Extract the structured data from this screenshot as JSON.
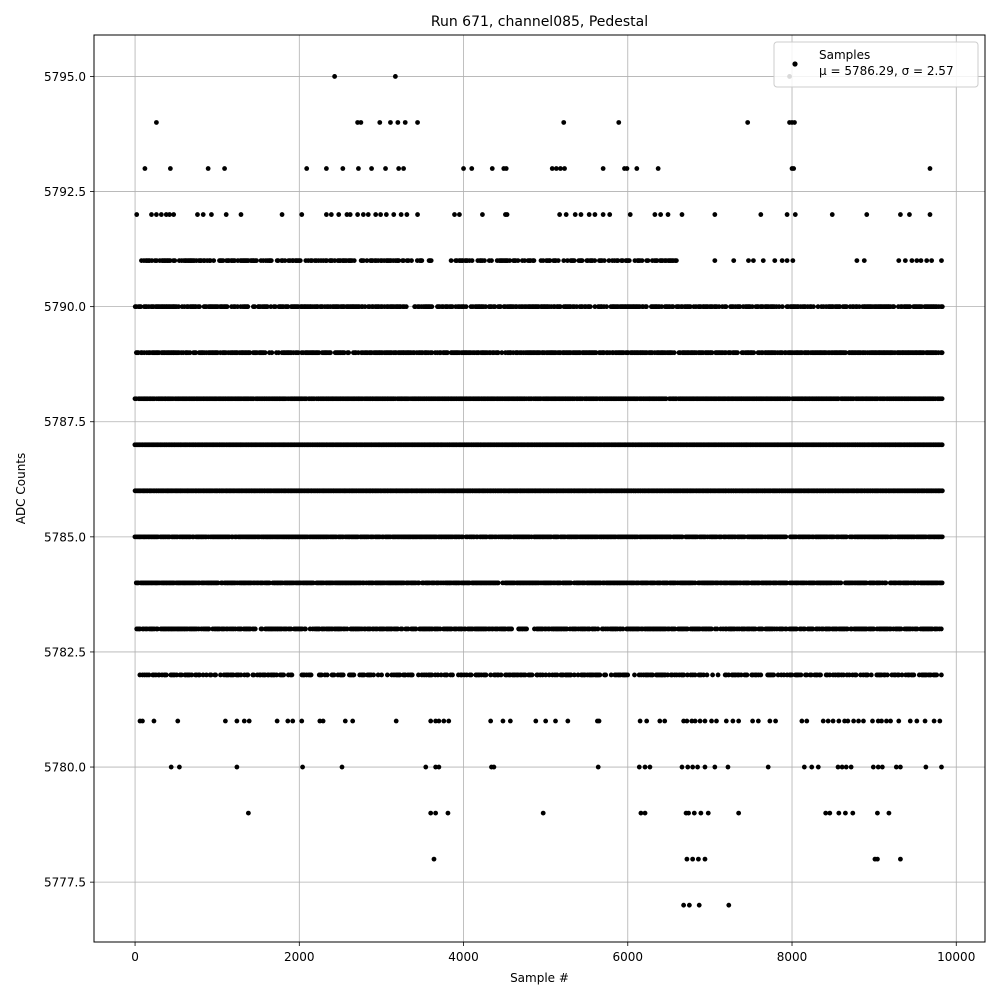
{
  "chart_data": {
    "type": "scatter",
    "title": "Run 671, channel085, Pedestal",
    "xlabel": "Sample #",
    "ylabel": "ADC Counts",
    "xlim": [
      -500,
      10350
    ],
    "ylim": [
      5776.2,
      5795.9
    ],
    "xticks": [
      0,
      2000,
      4000,
      6000,
      8000,
      10000
    ],
    "xtick_labels": [
      "0",
      "2000",
      "4000",
      "6000",
      "8000",
      "10000"
    ],
    "yticks": [
      5777.5,
      5780.0,
      5782.5,
      5785.0,
      5787.5,
      5790.0,
      5792.5,
      5795.0
    ],
    "ytick_labels": [
      "5777.5",
      "5780.0",
      "5782.5",
      "5785.0",
      "5787.5",
      "5790.0",
      "5792.5",
      "5795.0"
    ],
    "grid": true,
    "legend": {
      "placement": "top-right",
      "entries": [
        {
          "label": "Samples",
          "stats": "μ = 5786.29, σ = 2.57"
        }
      ]
    },
    "series": [
      {
        "name": "Samples",
        "color": "#000000",
        "marker": "circle",
        "x_range": [
          0,
          9830
        ],
        "levels": [
          {
            "y": 5795,
            "x": [
              2430,
              3170,
              7970
            ]
          },
          {
            "y": 5794,
            "x": [
              260,
              2710,
              2750,
              2980,
              3110,
              3200,
              3290,
              3440,
              5220,
              5890,
              7460,
              7970,
              8000,
              8030
            ]
          },
          {
            "y": 5793,
            "x": [
              120,
              430,
              890,
              1090,
              2090,
              2330,
              2530,
              2720,
              2880,
              3050,
              3210,
              3270,
              4000,
              4100,
              4350,
              4490,
              4520,
              5080,
              5130,
              5180,
              5230,
              5700,
              5960,
              5990,
              6110,
              6370,
              8000,
              8020,
              9680
            ]
          },
          {
            "y": 5792,
            "x": [
              20,
              200,
              260,
              320,
              380,
              420,
              470,
              760,
              830,
              930,
              1110,
              1290,
              1790,
              2030,
              2330,
              2390,
              2480,
              2580,
              2620,
              2710,
              2780,
              2840,
              2930,
              2990,
              3060,
              3150,
              3240,
              3310,
              3440,
              3890,
              3950,
              4230,
              4510,
              4530,
              5170,
              5250,
              5360,
              5430,
              5530,
              5600,
              5700,
              5780,
              6030,
              6330,
              6400,
              6490,
              6660,
              7060,
              7620,
              7940,
              8040,
              8490,
              8910,
              9320,
              9430,
              9680
            ]
          },
          {
            "y": 5791,
            "x_span": [
              50,
              3620
            ],
            "density": 0.55,
            "x_span2": [
              3850,
              6620
            ],
            "density2": 0.5,
            "extra": [
              7060,
              7290,
              7470,
              7530,
              7650,
              7790,
              7880,
              7940,
              8010,
              8790,
              8880,
              9300,
              9380,
              9460,
              9520,
              9570,
              9640,
              9700,
              9820
            ]
          },
          {
            "y": 5790,
            "x_span": [
              0,
              9830
            ],
            "density": 0.7
          },
          {
            "y": 5789,
            "x_span": [
              0,
              9830
            ],
            "density": 0.8
          },
          {
            "y": 5788,
            "x_span": [
              0,
              9830
            ],
            "density": 0.95
          },
          {
            "y": 5787,
            "x_span": [
              0,
              9830
            ],
            "density": 1.0
          },
          {
            "y": 5786,
            "x_span": [
              0,
              9830
            ],
            "density": 1.0
          },
          {
            "y": 5785,
            "x_span": [
              0,
              9830
            ],
            "density": 0.9
          },
          {
            "y": 5784,
            "x_span": [
              0,
              9830
            ],
            "density": 0.85
          },
          {
            "y": 5783,
            "x_span": [
              20,
              9830
            ],
            "density": 0.75
          },
          {
            "y": 5782,
            "x_span": [
              60,
              9830
            ],
            "density": 0.5
          },
          {
            "y": 5781,
            "x": [
              60,
              90,
              230,
              520,
              1100,
              1240,
              1330,
              1390,
              1730,
              1860,
              1920,
              2030,
              2250,
              2290,
              2560,
              2650,
              3180,
              3600,
              3660,
              3700,
              3760,
              3820,
              4330,
              4480,
              4570,
              4880,
              5000,
              5120,
              5270,
              5630,
              5650,
              6150,
              6230,
              6390,
              6450,
              6680,
              6720,
              6780,
              6820,
              6880,
              6940,
              7020,
              7080,
              7200,
              7280,
              7350,
              7520,
              7590,
              7730,
              7800,
              8120,
              8180,
              8380,
              8440,
              8500,
              8570,
              8640,
              8680,
              8750,
              8810,
              8870,
              8980,
              9050,
              9090,
              9150,
              9200,
              9300,
              9440,
              9520,
              9620,
              9730,
              9800
            ]
          },
          {
            "y": 5780,
            "x": [
              440,
              540,
              1240,
              2040,
              2520,
              3540,
              3660,
              3700,
              4340,
              4370,
              5640,
              6140,
              6210,
              6270,
              6660,
              6730,
              6790,
              6850,
              6940,
              7060,
              7220,
              7710,
              8150,
              8240,
              8320,
              8560,
              8610,
              8660,
              8720,
              8990,
              9050,
              9100,
              9270,
              9320,
              9630,
              9820
            ]
          },
          {
            "y": 5779,
            "x": [
              1380,
              3600,
              3660,
              3810,
              4970,
              6160,
              6210,
              6710,
              6740,
              6810,
              6890,
              6980,
              7350,
              8410,
              8460,
              8570,
              8650,
              8740,
              9040,
              9180
            ]
          },
          {
            "y": 5778,
            "x": [
              3640,
              6720,
              6790,
              6860,
              6940,
              9010,
              9040,
              9320
            ]
          },
          {
            "y": 5777,
            "x": [
              6680,
              6750,
              6870,
              7230
            ]
          }
        ]
      }
    ]
  }
}
